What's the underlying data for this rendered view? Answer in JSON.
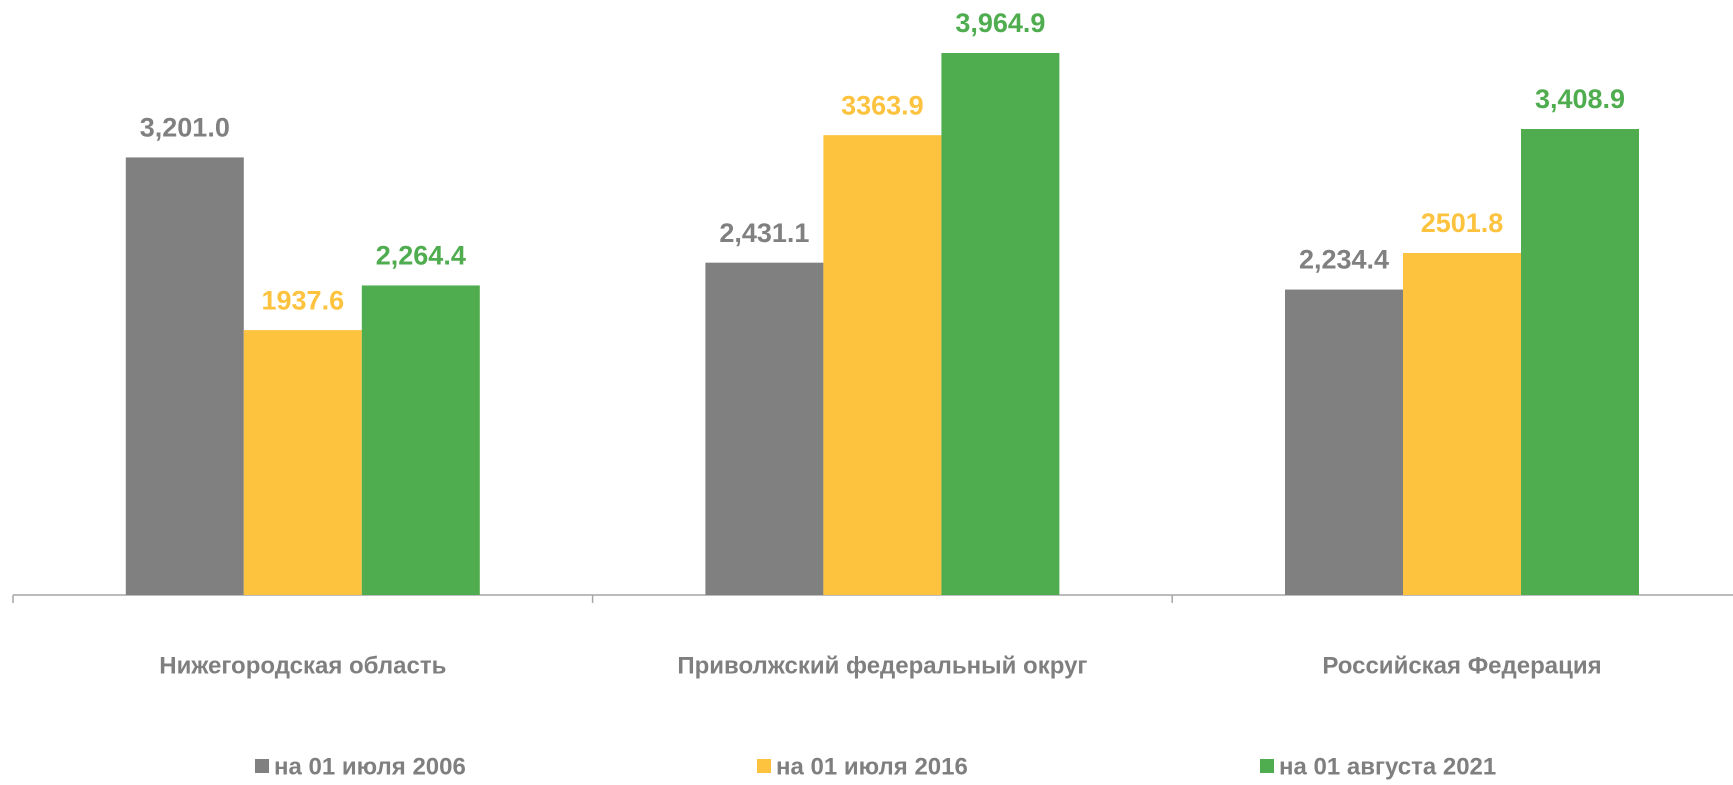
{
  "chart_data": {
    "type": "bar",
    "categories": [
      "Нижегородская область",
      "Приволжский федеральный округ",
      "Российская Федерация"
    ],
    "series": [
      {
        "name": "на 01 июля 2006",
        "color": "#808080",
        "values": [
          3201.0,
          2431.1,
          2234.4
        ],
        "value_labels": [
          "3,201.0",
          "2,431.1",
          "2,234.4"
        ]
      },
      {
        "name": "на 01 июля 2016",
        "color": "#fdc33f",
        "values": [
          1937.6,
          3363.9,
          2501.8
        ],
        "value_labels": [
          "1937.6",
          "3363.9",
          "2501.8"
        ]
      },
      {
        "name": "на 01 августа 2021",
        "color": "#4fad4f",
        "values": [
          2264.4,
          3964.9,
          3408.9
        ],
        "value_labels": [
          "2,264.4",
          "3,964.9",
          "3,408.9"
        ]
      }
    ]
  }
}
